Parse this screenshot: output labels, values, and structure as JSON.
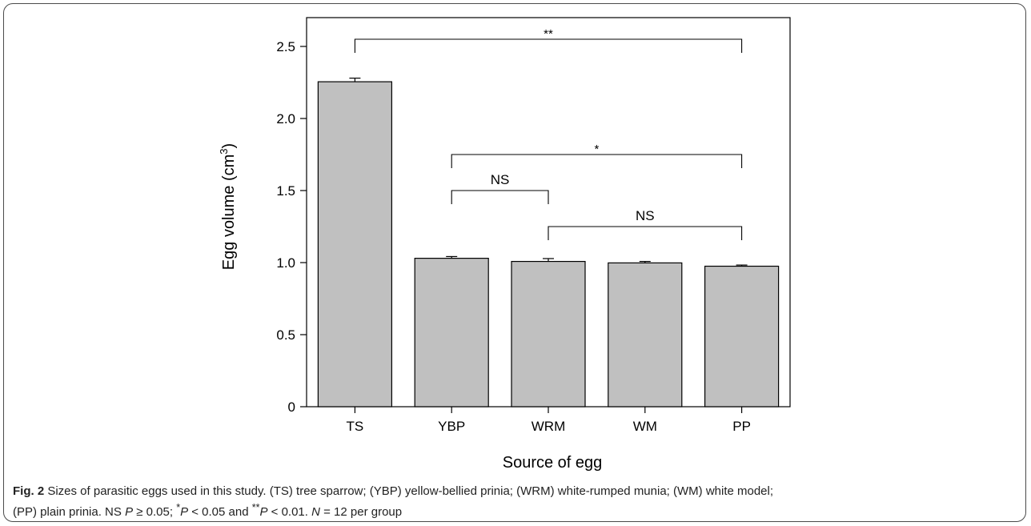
{
  "chart_data": {
    "type": "bar",
    "categories": [
      "TS",
      "YBP",
      "WRM",
      "WM",
      "PP"
    ],
    "values": [
      2.255,
      1.03,
      1.008,
      0.998,
      0.975
    ],
    "errors": [
      0.025,
      0.012,
      0.02,
      0.01,
      0.008
    ],
    "bar_color": "#c0c0c0",
    "xlabel": "Source of egg",
    "ylabel": "Egg volume (cm3)",
    "ylabel_base": "Egg volume (cm",
    "ylabel_sup": "3",
    "ylabel_close": ")",
    "ylim": [
      0,
      2.7
    ],
    "yticks": [
      "0",
      "0.5",
      "1.0",
      "1.5",
      "2.0",
      "2.5"
    ],
    "ytick_values": [
      0,
      0.5,
      1.0,
      1.5,
      2.0,
      2.5
    ],
    "grid": false,
    "significance": [
      {
        "from": "TS",
        "to": "PP",
        "y": 2.55,
        "label": "**"
      },
      {
        "from": "YBP",
        "to": "PP",
        "y": 1.75,
        "label": "*"
      },
      {
        "from": "YBP",
        "to": "WRM",
        "y": 1.5,
        "label": "NS"
      },
      {
        "from": "WRM",
        "to": "PP",
        "y": 1.25,
        "label": "NS"
      }
    ]
  },
  "caption": {
    "fig_label": "Fig. 2",
    "text_1": " Sizes of parasitic eggs used in this study. (TS) tree sparrow; (YBP) yellow-bellied prinia; (WRM) white-rumped munia; (WM) white model;",
    "text_2": "(PP) plain prinia. NS ",
    "p1": "P",
    "t1": " ≥ 0.05; ",
    "sup1": "*",
    "p2": "P",
    "t2": " < 0.05 and ",
    "sup2": "**",
    "p3": "P",
    "t3": " < 0.01. ",
    "n": "N",
    "t4": " = 12 per group"
  }
}
